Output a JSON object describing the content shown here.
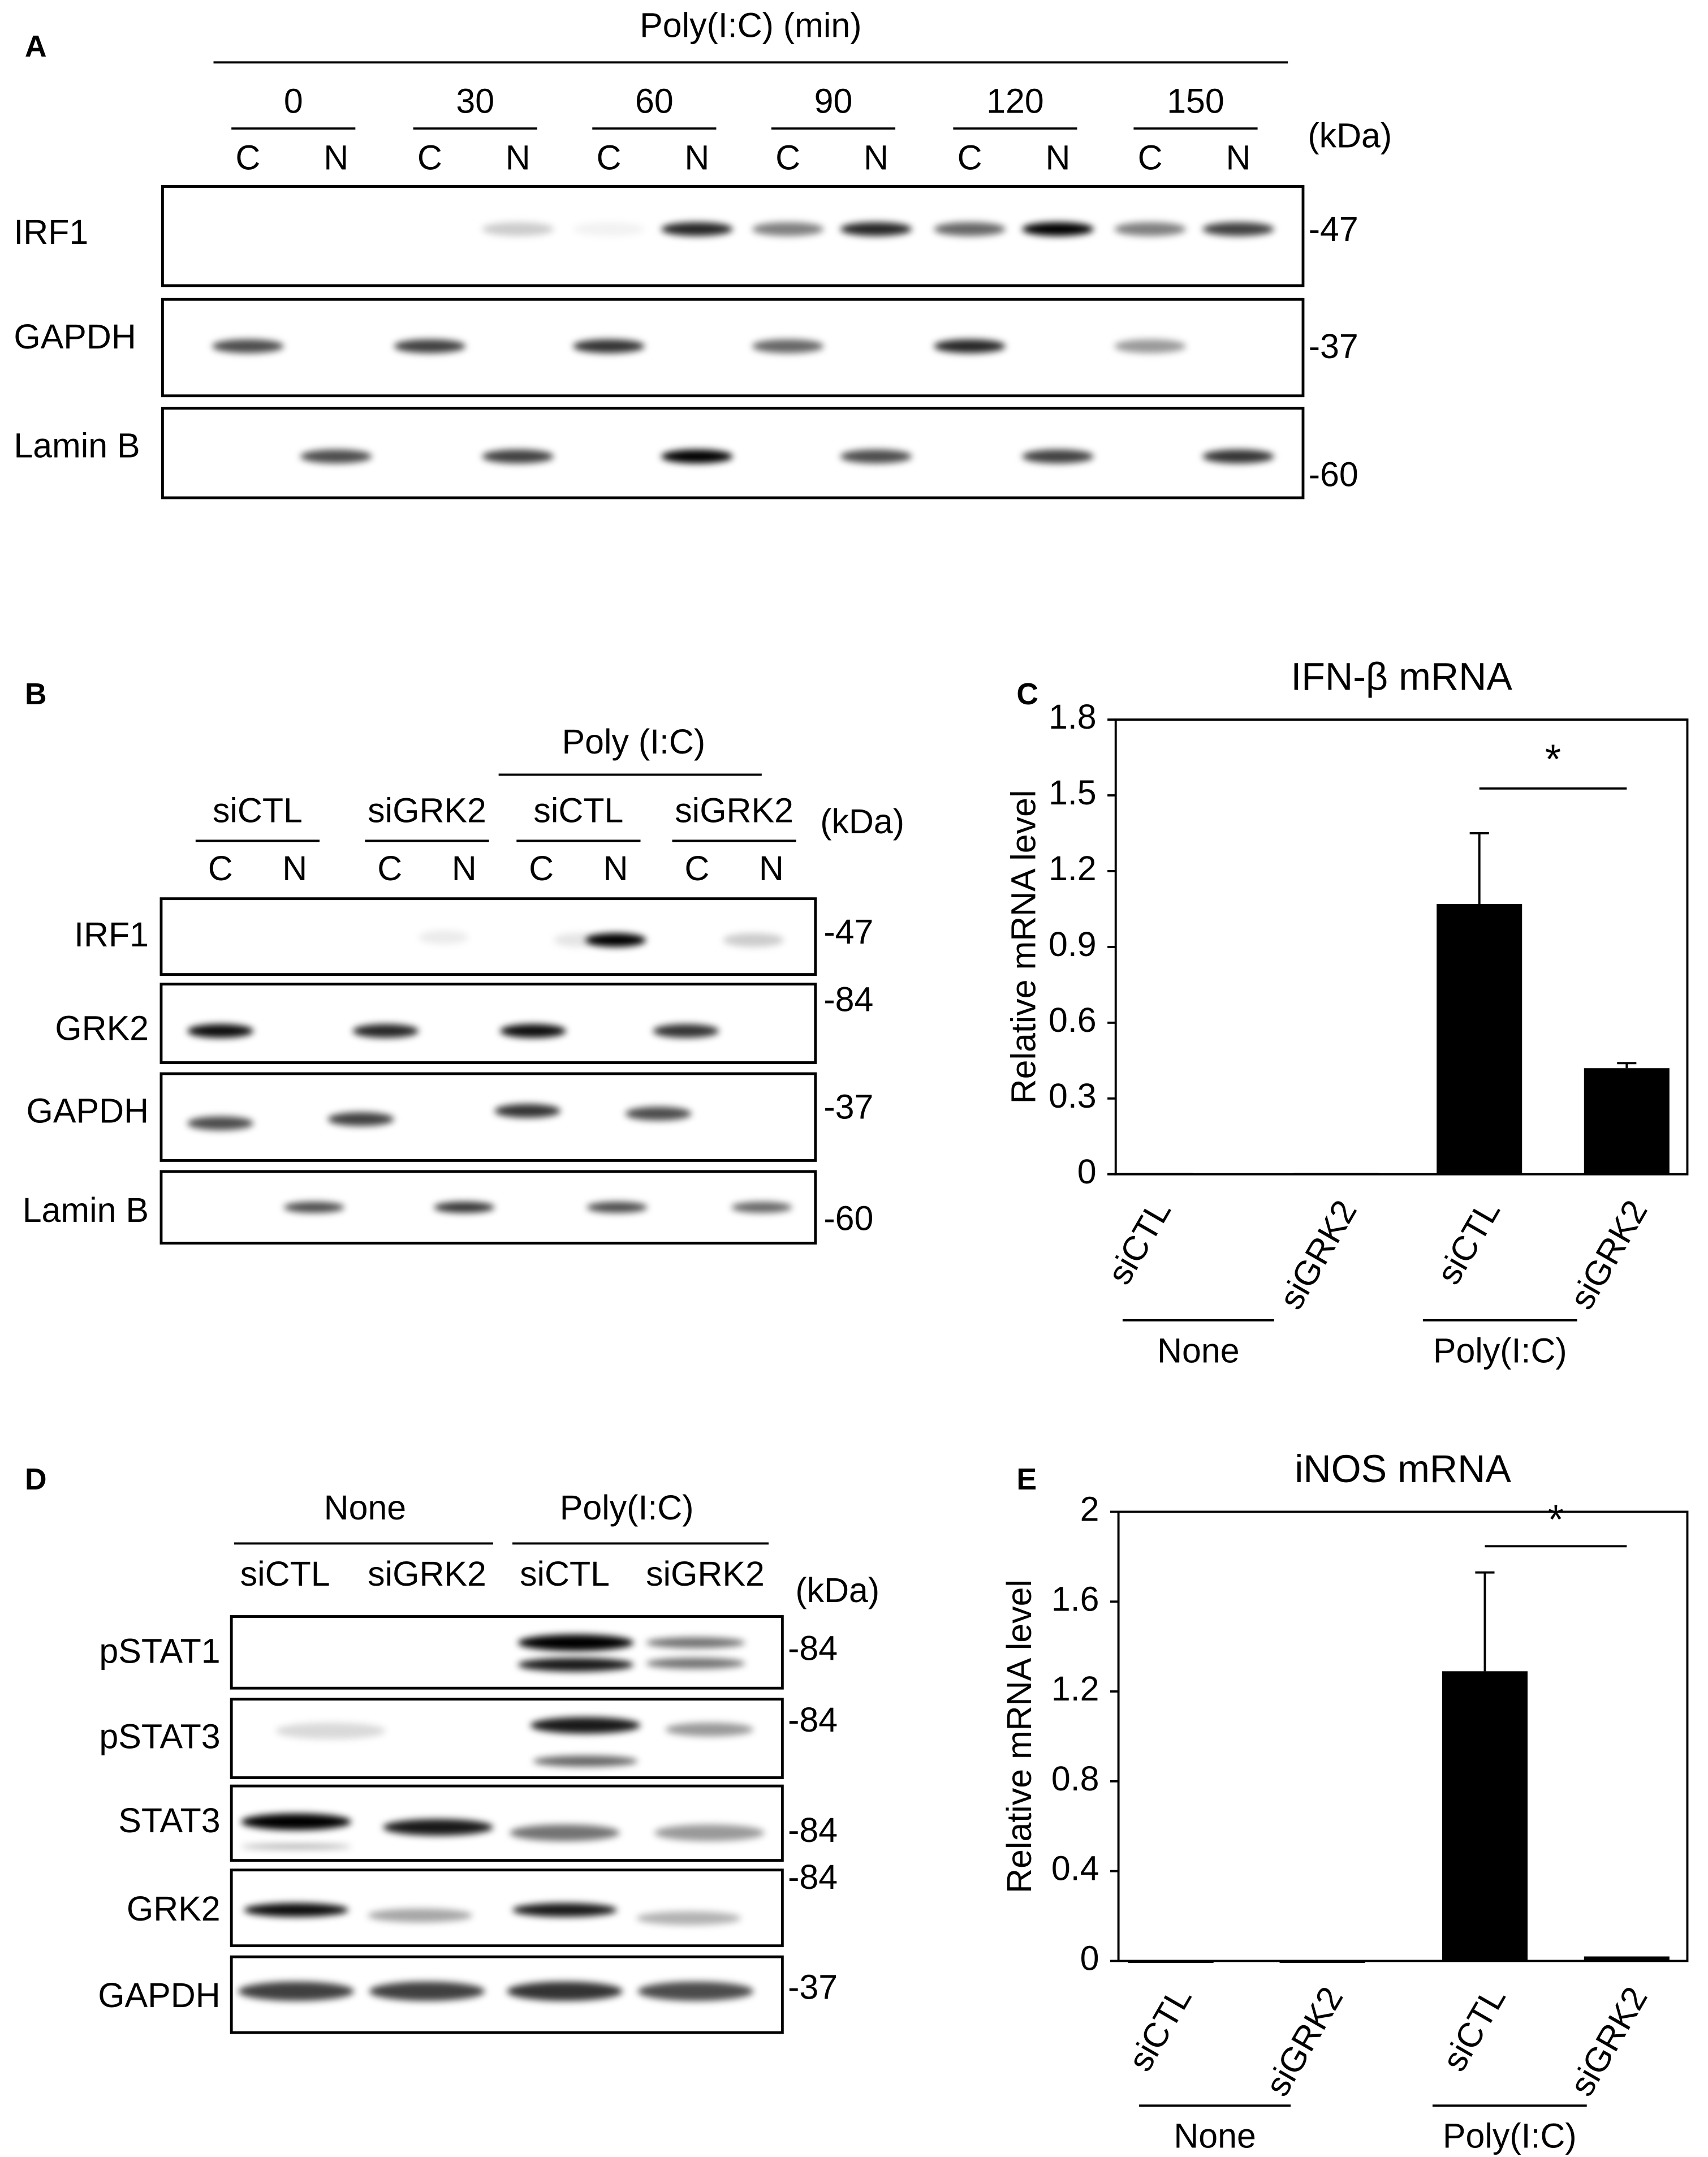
{
  "panel_labels": [
    "A",
    "B",
    "C",
    "D",
    "E"
  ],
  "blot_a": {
    "treatment": "Poly(I:C) (min)",
    "times": [
      "0",
      "30",
      "60",
      "90",
      "120",
      "150"
    ],
    "fractions": [
      "C",
      "N"
    ],
    "kda_unit": "(kDa)",
    "rows": [
      {
        "label": "IRF1",
        "kda": "-47"
      },
      {
        "label": "GAPDH",
        "kda": "-37"
      },
      {
        "label": "Lamin B",
        "kda": "-60"
      }
    ]
  },
  "blot_b": {
    "treatment": "Poly (I:C)",
    "groups": [
      "siCTL",
      "siGRK2",
      "siCTL",
      "siGRK2"
    ],
    "fractions": [
      "C",
      "N"
    ],
    "kda_unit": "(kDa)",
    "rows": [
      {
        "label": "IRF1",
        "kda": "-47"
      },
      {
        "label": "GRK2",
        "kda": "-84"
      },
      {
        "label": "GAPDH",
        "kda": "-37"
      },
      {
        "label": "Lamin B",
        "kda": "-60"
      }
    ]
  },
  "blot_d": {
    "groups": [
      "None",
      "Poly(I:C)"
    ],
    "conditions": [
      "siCTL",
      "siGRK2"
    ],
    "kda_unit": "(kDa)",
    "rows": [
      {
        "label": "pSTAT1",
        "kda": "-84"
      },
      {
        "label": "pSTAT3",
        "kda": "-84"
      },
      {
        "label": "STAT3",
        "kda": "-84"
      },
      {
        "label": "GRK2",
        "kda": "-84"
      },
      {
        "label": "GAPDH",
        "kda": "-37"
      }
    ]
  },
  "chart_data": [
    {
      "type": "bar",
      "title": "IFN-β mRNA",
      "y_label": "Relative mRNA level",
      "categories": [
        "siCTL",
        "siGRK2",
        "siCTL",
        "siGRK2"
      ],
      "groups": [
        "None",
        "Poly(I:C)"
      ],
      "values": [
        0.005,
        0.005,
        1.07,
        0.42
      ],
      "errors": [
        null,
        null,
        0.28,
        0.02
      ],
      "color": "#000000",
      "ylim": [
        0,
        1.8
      ],
      "yticks": [
        0,
        0.3,
        0.6,
        0.9,
        1.2,
        1.5,
        1.8
      ],
      "annotation": "*"
    },
    {
      "type": "bar",
      "title": "iNOS mRNA",
      "y_label": "Relative mRNA level",
      "categories": [
        "siCTL",
        "siGRK2",
        "siCTL",
        "siGRK2"
      ],
      "groups": [
        "None",
        "Poly(I:C)"
      ],
      "values": [
        0,
        0,
        1.29,
        0.02
      ],
      "errors": [
        null,
        null,
        0.44,
        null
      ],
      "color": "#000000",
      "ylim": [
        0,
        2
      ],
      "yticks": [
        0,
        0.4,
        0.8,
        1.2,
        1.6,
        2
      ],
      "annotation": "*"
    }
  ]
}
